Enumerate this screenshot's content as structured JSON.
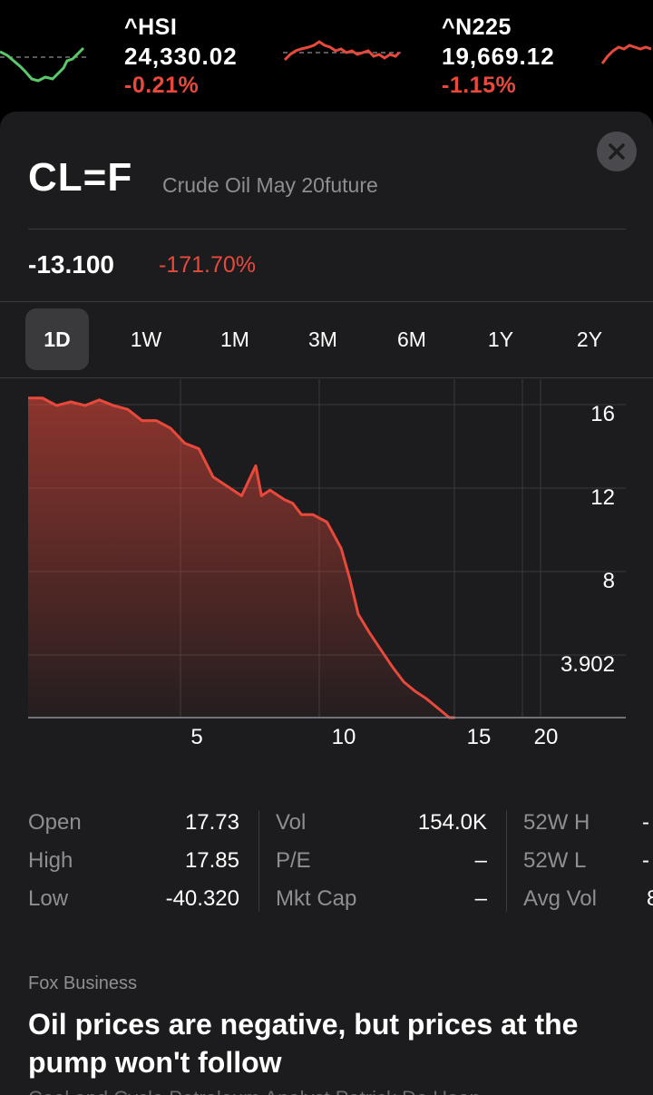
{
  "ticker": [
    {
      "symbol": "^HSI",
      "price": "24,330.02",
      "change": "-0.21%"
    },
    {
      "symbol": "^N225",
      "price": "19,669.12",
      "change": "-1.15%"
    }
  ],
  "colors": {
    "up": "#5ac86b",
    "down": "#e9493b",
    "card": "#1c1c1e"
  },
  "quote": {
    "symbol": "CL=F",
    "name": "Crude Oil May 20future",
    "price": "-13.100",
    "change_pct": "-171.70%",
    "close_icon": "close-icon"
  },
  "ranges": [
    "1D",
    "1W",
    "1M",
    "3M",
    "6M",
    "1Y",
    "2Y"
  ],
  "active_range": "1D",
  "chart_data": {
    "type": "area",
    "y_tick_labels": [
      "16",
      "12",
      "8",
      "3.902"
    ],
    "x_tick_labels": [
      "5",
      "10",
      "15",
      "20"
    ],
    "x": [
      0,
      0.5,
      1,
      1.5,
      2,
      2.5,
      3,
      3.5,
      4,
      4.5,
      5,
      5.5,
      6,
      6.5,
      7,
      7.5,
      8,
      8.2,
      8.5,
      9,
      9.3,
      9.6,
      10,
      10.5,
      11,
      11.3,
      11.6,
      12,
      12.4,
      12.8,
      13.2,
      13.6,
      14,
      14.4,
      14.8,
      15
    ],
    "values": [
      17.0,
      17.0,
      16.6,
      16.8,
      16.6,
      16.9,
      16.6,
      16.4,
      15.8,
      15.8,
      15.4,
      14.6,
      14.3,
      12.8,
      12.3,
      11.8,
      13.4,
      11.8,
      12.1,
      11.6,
      11.4,
      10.8,
      10.8,
      10.4,
      9.0,
      7.4,
      5.5,
      4.5,
      3.6,
      2.7,
      1.9,
      1.4,
      1.0,
      0.5,
      0.0,
      0.0
    ],
    "ylim": [
      0,
      18
    ],
    "xlim": [
      0,
      21
    ],
    "grid": true,
    "series_color": "#e9493b"
  },
  "stats": {
    "col1": [
      {
        "label": "Open",
        "value": "17.73"
      },
      {
        "label": "High",
        "value": "17.85"
      },
      {
        "label": "Low",
        "value": "-40.320"
      }
    ],
    "col2": [
      {
        "label": "Vol",
        "value": "154.0K"
      },
      {
        "label": "P/E",
        "value": "–"
      },
      {
        "label": "Mkt Cap",
        "value": "–"
      }
    ],
    "col3": [
      {
        "label": "52W H",
        "value": "-"
      },
      {
        "label": "52W L",
        "value": "-"
      },
      {
        "label": "Avg Vol",
        "value": "8"
      }
    ]
  },
  "news": {
    "source": "Fox Business",
    "title": "Oil prices are negative, but prices at the pump won't follow",
    "subtitle": "Coal and Cycle Petroleum Analyst Patrick De Haan"
  }
}
